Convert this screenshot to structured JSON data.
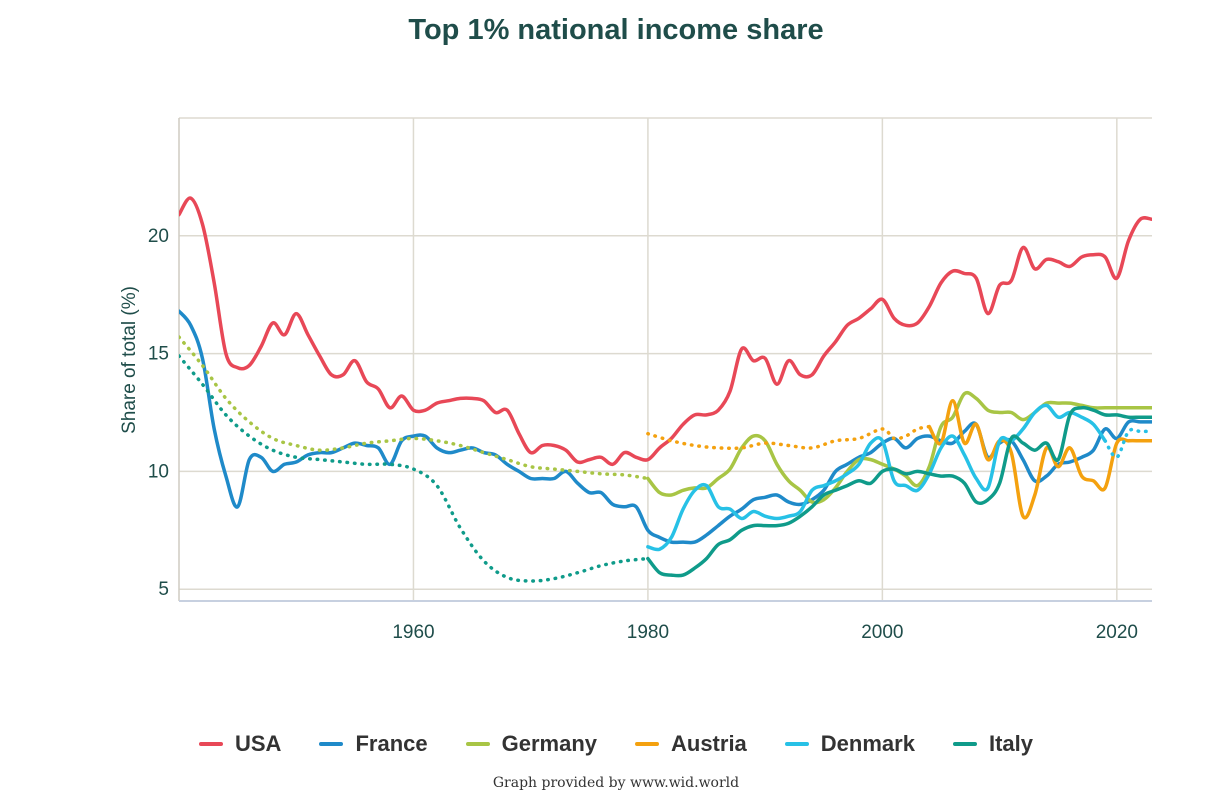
{
  "chart_data": {
    "type": "line",
    "title": "Top 1% national income share",
    "ylabel": "Share of total (%)",
    "xlabel": "",
    "xlim": [
      1940,
      2023
    ],
    "ylim": [
      4.5,
      25
    ],
    "x_ticks": [
      1960,
      1980,
      2000,
      2020
    ],
    "y_ticks": [
      5,
      10,
      15,
      20
    ],
    "series": [
      {
        "name": "USA",
        "color": "#e84857",
        "segments": [
          {
            "style": "solid",
            "x": [
              1940,
              1941,
              1942,
              1943,
              1944,
              1945,
              1946,
              1947,
              1948,
              1949,
              1950,
              1951,
              1952,
              1953,
              1954,
              1955,
              1956,
              1957,
              1958,
              1959,
              1960,
              1961,
              1962,
              1963,
              1964,
              1965,
              1966,
              1967,
              1968,
              1969,
              1970,
              1971,
              1972,
              1973,
              1974,
              1975,
              1976,
              1977,
              1978,
              1979,
              1980,
              1981,
              1982,
              1983,
              1984,
              1985,
              1986,
              1987,
              1988,
              1989,
              1990,
              1991,
              1992,
              1993,
              1994,
              1995,
              1996,
              1997,
              1998,
              1999,
              2000,
              2001,
              2002,
              2003,
              2004,
              2005,
              2006,
              2007,
              2008,
              2009,
              2010,
              2011,
              2012,
              2013,
              2014,
              2015,
              2016,
              2017,
              2018,
              2019,
              2020,
              2021,
              2022,
              2023
            ],
            "y": [
              20.9,
              21.6,
              20.5,
              18,
              15,
              14.4,
              14.5,
              15.3,
              16.3,
              15.8,
              16.7,
              15.8,
              14.9,
              14.1,
              14.1,
              14.7,
              13.8,
              13.5,
              12.7,
              13.2,
              12.6,
              12.6,
              12.9,
              13,
              13.1,
              13.1,
              13,
              12.5,
              12.6,
              11.6,
              10.8,
              11.1,
              11.1,
              10.9,
              10.4,
              10.5,
              10.6,
              10.3,
              10.8,
              10.6,
              10.5,
              11,
              11.4,
              12,
              12.4,
              12.4,
              12.6,
              13.4,
              15.2,
              14.7,
              14.8,
              13.7,
              14.7,
              14.1,
              14.1,
              14.9,
              15.5,
              16.2,
              16.5,
              16.9,
              17.3,
              16.5,
              16.2,
              16.3,
              17,
              18,
              18.5,
              18.4,
              18.2,
              16.7,
              17.9,
              18.1,
              19.5,
              18.6,
              19,
              18.9,
              18.7,
              19.1,
              19.2,
              19.1,
              18.2,
              19.8,
              20.7,
              20.7
            ]
          }
        ]
      },
      {
        "name": "France",
        "color": "#1f8ac9",
        "segments": [
          {
            "style": "solid",
            "x": [
              1940,
              1941,
              1942,
              1943,
              1944,
              1945,
              1946,
              1947,
              1948,
              1949,
              1950,
              1951,
              1952,
              1953,
              1954,
              1955,
              1956,
              1957,
              1958,
              1959,
              1960,
              1961,
              1962,
              1963,
              1964,
              1965,
              1966,
              1967,
              1968,
              1969,
              1970,
              1971,
              1972,
              1973,
              1974,
              1975,
              1976,
              1977,
              1978,
              1979,
              1980,
              1981,
              1982,
              1983,
              1984,
              1985,
              1986,
              1987,
              1988,
              1989,
              1990,
              1991,
              1992,
              1993,
              1994,
              1995,
              1996,
              1997,
              1998,
              1999,
              2000,
              2001,
              2002,
              2003,
              2004,
              2005,
              2006,
              2007,
              2008,
              2009,
              2010,
              2011,
              2012,
              2013,
              2014,
              2015,
              2016,
              2017,
              2018,
              2019,
              2020,
              2021,
              2022,
              2023
            ],
            "y": [
              16.8,
              16.2,
              14.8,
              11.8,
              9.8,
              8.5,
              10.5,
              10.6,
              10,
              10.3,
              10.4,
              10.7,
              10.8,
              10.8,
              11,
              11.2,
              11.1,
              11,
              10.3,
              11.3,
              11.5,
              11.5,
              11,
              10.8,
              10.9,
              11,
              10.8,
              10.7,
              10.3,
              10,
              9.7,
              9.7,
              9.7,
              10,
              9.5,
              9.1,
              9.1,
              8.6,
              8.5,
              8.5,
              7.5,
              7.2,
              7,
              7,
              7,
              7.3,
              7.7,
              8.1,
              8.4,
              8.8,
              8.9,
              9,
              8.7,
              8.6,
              8.8,
              9.2,
              10,
              10.3,
              10.6,
              10.8,
              11.2,
              11.4,
              11,
              11.4,
              11.5,
              11.3,
              11.2,
              11.7,
              12,
              10.6,
              11.2,
              11.3,
              10.5,
              9.6,
              9.8,
              10.3,
              10.4,
              10.6,
              10.9,
              11.8,
              11.4,
              12.1,
              12.1,
              12.1
            ]
          }
        ]
      },
      {
        "name": "Germany",
        "color": "#a8c545",
        "segments": [
          {
            "style": "dotted",
            "x": [
              1940,
              1942,
              1944,
              1946,
              1948,
              1950,
              1952,
              1954,
              1956,
              1958,
              1960,
              1962,
              1964,
              1966,
              1968,
              1970,
              1972,
              1974,
              1976,
              1978,
              1980
            ],
            "y": [
              15.7,
              14.5,
              13.1,
              12.1,
              11.4,
              11.1,
              10.9,
              11,
              11.2,
              11.3,
              11.4,
              11.3,
              11.1,
              10.8,
              10.5,
              10.2,
              10.1,
              10,
              9.9,
              9.85,
              9.7
            ]
          },
          {
            "style": "solid",
            "x": [
              1980,
              1981,
              1982,
              1983,
              1984,
              1985,
              1986,
              1987,
              1988,
              1989,
              1990,
              1991,
              1992,
              1993,
              1994,
              1995,
              1996,
              1997,
              1998,
              1999,
              2000,
              2001,
              2002,
              2003,
              2004,
              2005,
              2006,
              2007,
              2008,
              2009,
              2010,
              2011,
              2012,
              2013,
              2014,
              2015,
              2016,
              2017,
              2018,
              2019,
              2020,
              2021,
              2022,
              2023
            ],
            "y": [
              9.7,
              9.1,
              9,
              9.2,
              9.3,
              9.3,
              9.7,
              10.1,
              11,
              11.5,
              11.3,
              10.3,
              9.6,
              9.2,
              8.7,
              8.8,
              9.3,
              10,
              10.5,
              10.5,
              10.3,
              10.1,
              9.8,
              9.4,
              10.2,
              11.9,
              12.3,
              13.3,
              13.1,
              12.6,
              12.5,
              12.5,
              12.2,
              12.5,
              12.9,
              12.9,
              12.9,
              12.8,
              12.7,
              12.7,
              12.7,
              12.7,
              12.7,
              12.7
            ]
          }
        ]
      },
      {
        "name": "Austria",
        "color": "#f4a10f",
        "segments": [
          {
            "style": "dotted",
            "x": [
              1980,
              1982,
              1984,
              1986,
              1988,
              1990,
              1992,
              1994,
              1996,
              1998,
              2000,
              2001,
              2002,
              2003,
              2004
            ],
            "y": [
              11.6,
              11.3,
              11.1,
              11,
              11,
              11.2,
              11.1,
              11,
              11.3,
              11.4,
              11.8,
              11.4,
              11.5,
              11.8,
              11.9
            ]
          },
          {
            "style": "solid",
            "x": [
              2004,
              2005,
              2006,
              2007,
              2008,
              2009,
              2010,
              2011,
              2012,
              2013,
              2014,
              2015,
              2016,
              2017,
              2018,
              2019,
              2020,
              2021,
              2022,
              2023
            ],
            "y": [
              11.9,
              11.2,
              13,
              11.2,
              12,
              10.5,
              11.3,
              10.8,
              8.1,
              9,
              11,
              10.2,
              11,
              9.8,
              9.6,
              9.3,
              11.2,
              11.3,
              11.3,
              11.3
            ]
          }
        ]
      },
      {
        "name": "Denmark",
        "color": "#27c1e6",
        "segments": [
          {
            "style": "solid",
            "x": [
              1980,
              1981,
              1982,
              1983,
              1984,
              1985,
              1986,
              1987,
              1988,
              1989,
              1990,
              1991,
              1992,
              1993,
              1994,
              1995,
              1996,
              1997,
              1998,
              1999,
              2000,
              2001,
              2002,
              2003,
              2004,
              2005,
              2006,
              2007,
              2008,
              2009,
              2010,
              2011,
              2012,
              2013,
              2014,
              2015,
              2016,
              2017,
              2018,
              2019
            ],
            "y": [
              6.8,
              6.7,
              7.2,
              8.4,
              9.2,
              9.4,
              8.5,
              8.4,
              8,
              8.3,
              8.1,
              8,
              8.1,
              8.3,
              9.2,
              9.4,
              9.6,
              9.9,
              10.3,
              11.2,
              11.3,
              9.6,
              9.4,
              9.2,
              9.9,
              11,
              11.5,
              10.7,
              9.7,
              9.3,
              11.3,
              11.3,
              11.8,
              12.5,
              12.8,
              12.3,
              12.5,
              12.3,
              12,
              11.3
            ]
          },
          {
            "style": "dotted",
            "x": [
              2019,
              2020,
              2021,
              2022,
              2023
            ],
            "y": [
              11.3,
              10.6,
              11.7,
              11.7,
              11.7
            ]
          }
        ]
      },
      {
        "name": "Italy",
        "color": "#0f9b8a",
        "segments": [
          {
            "style": "dotted",
            "x": [
              1940,
              1942,
              1944,
              1946,
              1948,
              1950,
              1952,
              1954,
              1956,
              1958,
              1960,
              1962,
              1964,
              1966,
              1968,
              1970,
              1972,
              1974,
              1976,
              1978,
              1980
            ],
            "y": [
              14.9,
              13.7,
              12.4,
              11.5,
              10.9,
              10.6,
              10.5,
              10.4,
              10.3,
              10.3,
              10.1,
              9.4,
              7.6,
              6.2,
              5.5,
              5.35,
              5.45,
              5.7,
              6,
              6.2,
              6.3
            ]
          },
          {
            "style": "solid",
            "x": [
              1980,
              1981,
              1982,
              1983,
              1984,
              1985,
              1986,
              1987,
              1988,
              1989,
              1990,
              1991,
              1992,
              1993,
              1994,
              1995,
              1996,
              1997,
              1998,
              1999,
              2000,
              2001,
              2002,
              2003,
              2004,
              2005,
              2006,
              2007,
              2008,
              2009,
              2010,
              2011,
              2012,
              2013,
              2014,
              2015,
              2016,
              2017,
              2018,
              2019,
              2020,
              2021,
              2022,
              2023
            ],
            "y": [
              6.3,
              5.7,
              5.6,
              5.6,
              5.9,
              6.3,
              6.9,
              7.1,
              7.5,
              7.7,
              7.7,
              7.7,
              7.8,
              8.1,
              8.5,
              9,
              9.2,
              9.4,
              9.6,
              9.5,
              10,
              10.1,
              9.9,
              10,
              9.9,
              9.8,
              9.8,
              9.5,
              8.7,
              8.8,
              9.5,
              11.4,
              11.2,
              10.9,
              11.2,
              10.5,
              12.4,
              12.7,
              12.6,
              12.4,
              12.4,
              12.3,
              12.3,
              12.3
            ]
          }
        ]
      }
    ]
  },
  "legend": [
    {
      "label": "USA",
      "color": "#e84857"
    },
    {
      "label": "France",
      "color": "#1f8ac9"
    },
    {
      "label": "Germany",
      "color": "#a8c545"
    },
    {
      "label": "Austria",
      "color": "#f4a10f"
    },
    {
      "label": "Denmark",
      "color": "#27c1e6"
    },
    {
      "label": "Italy",
      "color": "#0f9b8a"
    }
  ],
  "credit": "Graph provided by www.wid.world"
}
